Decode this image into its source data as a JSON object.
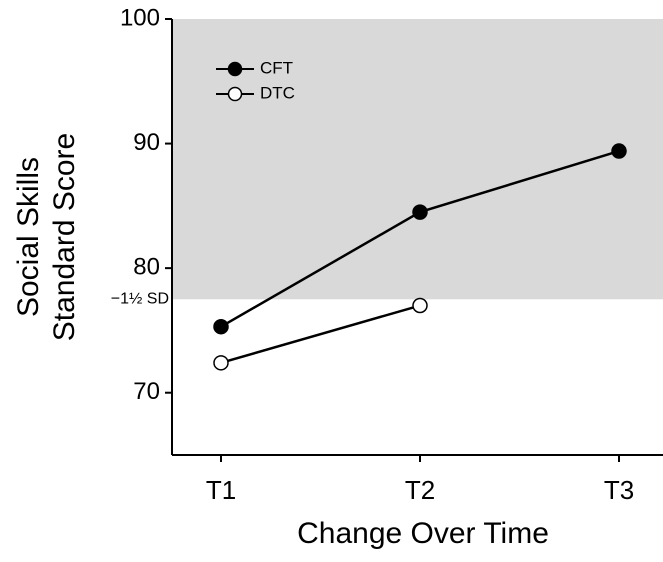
{
  "chart_data": {
    "type": "line",
    "xlabel": "Change Over Time",
    "ylabel": [
      "Social Skills",
      "Standard Score"
    ],
    "categories": [
      "T1",
      "T2",
      "T3"
    ],
    "series": [
      {
        "name": "CFT",
        "color": "#000000",
        "marker_fill": "#000000",
        "values": [
          75.3,
          84.5,
          89.4
        ]
      },
      {
        "name": "DTC",
        "color": "#000000",
        "marker_fill": "#ffffff",
        "values": [
          72.4,
          77.0,
          null
        ]
      }
    ],
    "ylim": [
      65,
      100
    ],
    "yticks": [
      70,
      80,
      90,
      100
    ],
    "threshold": {
      "value": 77.5,
      "label": "−1½ SD",
      "shade_color": "#d9d9d9"
    },
    "legend": "upper left"
  }
}
